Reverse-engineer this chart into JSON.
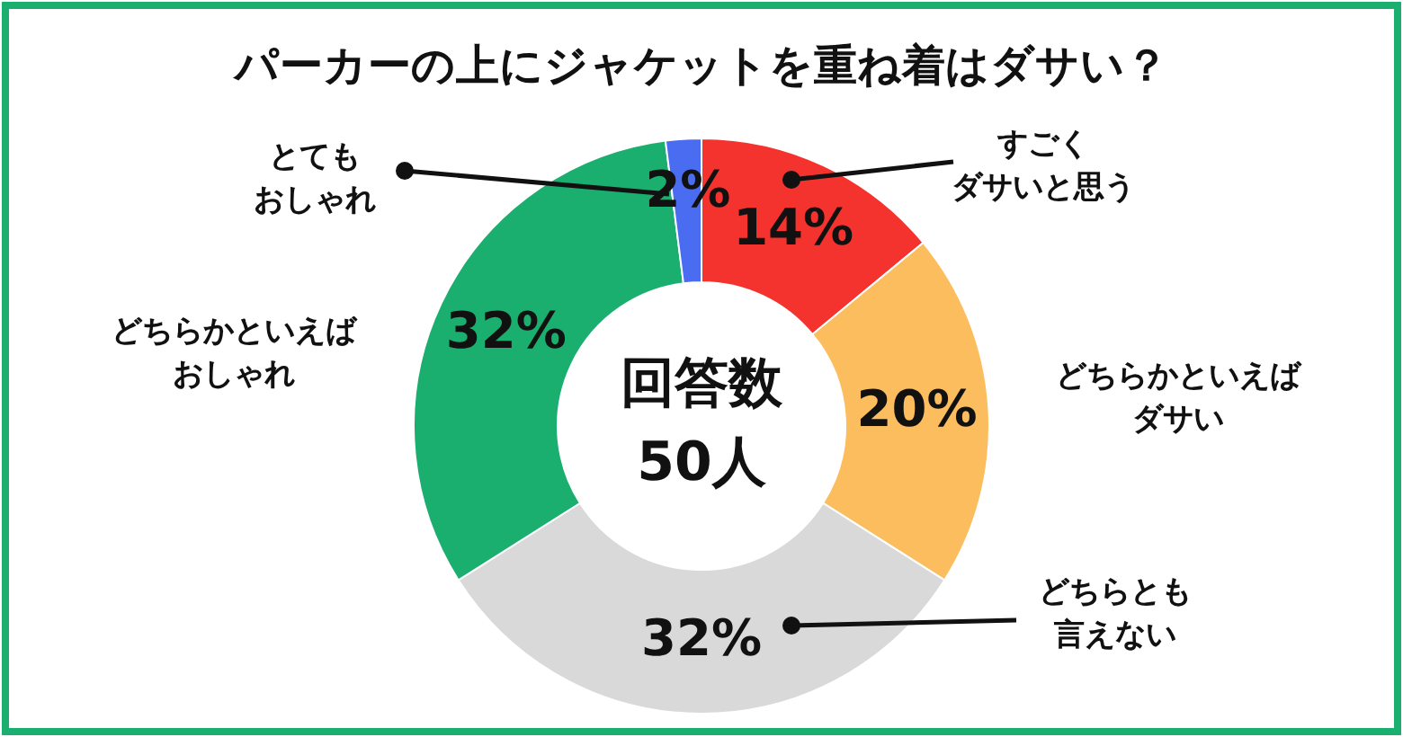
{
  "chart_data": {
    "type": "donut",
    "title": "パーカーの上にジャケットを重ね着はダサい？",
    "categories": [
      "すごくダサいと思う",
      "どちらかといえばダサい",
      "どちらとも言えない",
      "どちらかといえばおしゃれ",
      "とてもおしゃれ"
    ],
    "values": [
      14,
      20,
      32,
      32,
      2
    ],
    "value_labels": [
      "14%",
      "20%",
      "32%",
      "32%",
      "2%"
    ],
    "colors": [
      "#f5332e",
      "#fbbd5e",
      "#d9d9d9",
      "#1aae6f",
      "#4a6cf0"
    ],
    "annotations": [
      "回答数50人"
    ]
  }
}
